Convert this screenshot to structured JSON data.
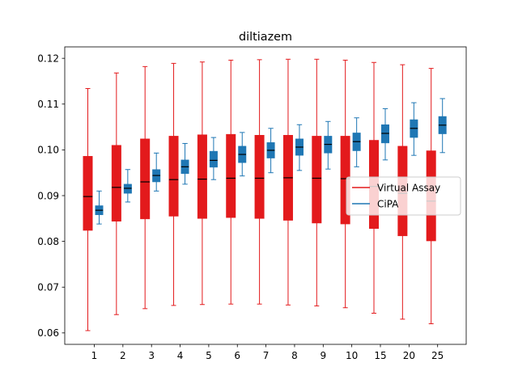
{
  "chart_data": {
    "type": "boxplot",
    "title": "diltiazem",
    "xlabel": "",
    "ylabel": "",
    "categories": [
      "1",
      "2",
      "3",
      "4",
      "5",
      "6",
      "7",
      "8",
      "9",
      "10",
      "15",
      "20",
      "25"
    ],
    "ylim": [
      0.0575,
      0.1225
    ],
    "yticks": [
      0.06,
      0.07,
      0.08,
      0.09,
      0.1,
      0.11,
      0.12
    ],
    "grid": false,
    "legend_position": "center-right",
    "series": [
      {
        "name": "Virtual Assay",
        "color": "#e31a1c",
        "median_color": "#000000",
        "boxes": [
          {
            "whislo": 0.0605,
            "q1": 0.0824,
            "med": 0.0898,
            "q3": 0.0986,
            "whishi": 0.1134
          },
          {
            "whislo": 0.064,
            "q1": 0.0844,
            "med": 0.0918,
            "q3": 0.101,
            "whishi": 0.1168
          },
          {
            "whislo": 0.0653,
            "q1": 0.0849,
            "med": 0.093,
            "q3": 0.1024,
            "whishi": 0.1182
          },
          {
            "whislo": 0.066,
            "q1": 0.0855,
            "med": 0.0935,
            "q3": 0.103,
            "whishi": 0.1189
          },
          {
            "whislo": 0.0662,
            "q1": 0.085,
            "med": 0.0936,
            "q3": 0.1033,
            "whishi": 0.1192
          },
          {
            "whislo": 0.0663,
            "q1": 0.0852,
            "med": 0.0938,
            "q3": 0.1034,
            "whishi": 0.1196
          },
          {
            "whislo": 0.0663,
            "q1": 0.085,
            "med": 0.0938,
            "q3": 0.1032,
            "whishi": 0.1197
          },
          {
            "whislo": 0.0661,
            "q1": 0.0846,
            "med": 0.0939,
            "q3": 0.1032,
            "whishi": 0.1198
          },
          {
            "whislo": 0.0659,
            "q1": 0.084,
            "med": 0.0938,
            "q3": 0.103,
            "whishi": 0.1198
          },
          {
            "whislo": 0.0655,
            "q1": 0.0838,
            "med": 0.0937,
            "q3": 0.103,
            "whishi": 0.1196
          },
          {
            "whislo": 0.0643,
            "q1": 0.0828,
            "med": 0.092,
            "q3": 0.1021,
            "whishi": 0.1191
          },
          {
            "whislo": 0.063,
            "q1": 0.0812,
            "med": 0.0905,
            "q3": 0.1008,
            "whishi": 0.1186
          },
          {
            "whislo": 0.062,
            "q1": 0.0801,
            "med": 0.0888,
            "q3": 0.0998,
            "whishi": 0.1178
          }
        ]
      },
      {
        "name": "CiPA",
        "color": "#1f77b4",
        "median_color": "#000000",
        "boxes": [
          {
            "whislo": 0.0838,
            "q1": 0.0858,
            "med": 0.0868,
            "q3": 0.0878,
            "whishi": 0.091
          },
          {
            "whislo": 0.0886,
            "q1": 0.0905,
            "med": 0.0916,
            "q3": 0.0925,
            "whishi": 0.0957
          },
          {
            "whislo": 0.091,
            "q1": 0.093,
            "med": 0.0944,
            "q3": 0.0957,
            "whishi": 0.0993
          },
          {
            "whislo": 0.0925,
            "q1": 0.0948,
            "med": 0.0963,
            "q3": 0.0978,
            "whishi": 0.1014
          },
          {
            "whislo": 0.0935,
            "q1": 0.0962,
            "med": 0.0977,
            "q3": 0.0997,
            "whishi": 0.1027
          },
          {
            "whislo": 0.0943,
            "q1": 0.0972,
            "med": 0.099,
            "q3": 0.1008,
            "whishi": 0.1038
          },
          {
            "whislo": 0.095,
            "q1": 0.0982,
            "med": 0.0999,
            "q3": 0.1016,
            "whishi": 0.1047
          },
          {
            "whislo": 0.0955,
            "q1": 0.0988,
            "med": 0.1006,
            "q3": 0.1024,
            "whishi": 0.1055
          },
          {
            "whislo": 0.0958,
            "q1": 0.0993,
            "med": 0.1012,
            "q3": 0.103,
            "whishi": 0.1062
          },
          {
            "whislo": 0.0963,
            "q1": 0.0998,
            "med": 0.1018,
            "q3": 0.1037,
            "whishi": 0.107
          },
          {
            "whislo": 0.0978,
            "q1": 0.1015,
            "med": 0.1036,
            "q3": 0.1055,
            "whishi": 0.109
          },
          {
            "whislo": 0.0988,
            "q1": 0.1027,
            "med": 0.1047,
            "q3": 0.1066,
            "whishi": 0.1103
          },
          {
            "whislo": 0.0994,
            "q1": 0.1035,
            "med": 0.1054,
            "q3": 0.1073,
            "whishi": 0.1112
          }
        ]
      }
    ]
  }
}
